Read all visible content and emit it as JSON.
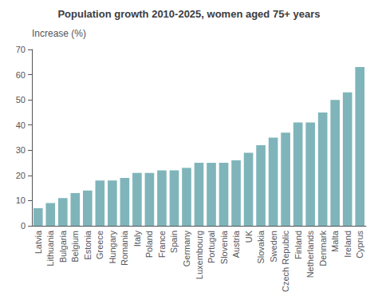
{
  "chart_data": {
    "type": "bar",
    "title": "Population growth 2010-2025, women aged 75+ years",
    "ylabel": "Increase (%)",
    "categories": [
      "Latvia",
      "Lithuania",
      "Bulgaria",
      "Belgium",
      "Estonia",
      "Greece",
      "Hungary",
      "Romania",
      "Italy",
      "Poland",
      "France",
      "Spain",
      "Germany",
      "Luxembourg",
      "Portugal",
      "Slovenia",
      "Austria",
      "UK",
      "Slovakia",
      "Sweden",
      "Czech Republic",
      "Finland",
      "Netherlands",
      "Denmark",
      "Malta",
      "Ireland",
      "Cyprus"
    ],
    "values": [
      7,
      9,
      11,
      13,
      14,
      18,
      18,
      19,
      21,
      21,
      22,
      22,
      23,
      25,
      25,
      25,
      26,
      29,
      32,
      35,
      37,
      41,
      41,
      45,
      50,
      53,
      63
    ],
    "color": "#7fb5ba",
    "ylim": [
      0,
      70
    ],
    "yticks": [
      0,
      10,
      20,
      30,
      40,
      50,
      60,
      70
    ],
    "grid": false
  }
}
